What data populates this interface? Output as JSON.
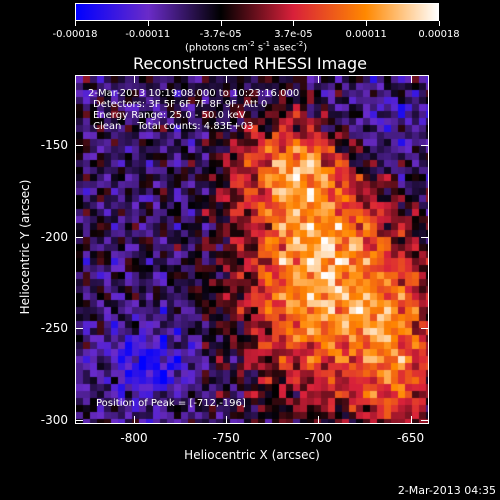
{
  "colorbar": {
    "ticks": [
      "-0.00018",
      "-0.00011",
      "-3.7e-05",
      "3.7e-05",
      "0.00011",
      "0.00018"
    ],
    "unit": "(photons cm",
    "unit_exp1": "-2",
    "unit_mid": " s",
    "unit_exp2": "-1",
    "unit_mid2": " asec",
    "unit_exp3": "-2",
    "unit_end": ")"
  },
  "title": "Reconstructed RHESSI Image",
  "info": {
    "time_range": "2-Mar-2013 10:19:08.000 to 10:23:16.000",
    "detectors": "Detectors: 3F 5F 6F 7F 8F 9F, Att 0",
    "energy": "Energy Range: 25.0 - 50.0 keV",
    "clean": "Clean     Total counts: 4.83E+03",
    "peak": "Position of Peak = [-712,-196]"
  },
  "axes": {
    "xlabel": "Heliocentric X (arcsec)",
    "ylabel": "Heliocentric Y (arcsec)",
    "xticks": [
      "-800",
      "-750",
      "-700",
      "-650"
    ],
    "yticks": [
      "-150",
      "-200",
      "-250",
      "-300"
    ]
  },
  "timestamp": "2-Mar-2013 04:35",
  "chart_data": {
    "type": "heatmap",
    "title": "Reconstructed RHESSI Image",
    "xlabel": "Heliocentric X (arcsec)",
    "ylabel": "Heliocentric Y (arcsec)",
    "xlim": [
      -832,
      -640
    ],
    "ylim": [
      -302,
      -112
    ],
    "peak": [
      -712,
      -196
    ],
    "colorbar_range": [
      -0.00018,
      0.00018
    ],
    "colormap": [
      "#0000ff",
      "#6a2bc8",
      "#000000",
      "#d8203a",
      "#ff8800",
      "#ffffff"
    ]
  }
}
